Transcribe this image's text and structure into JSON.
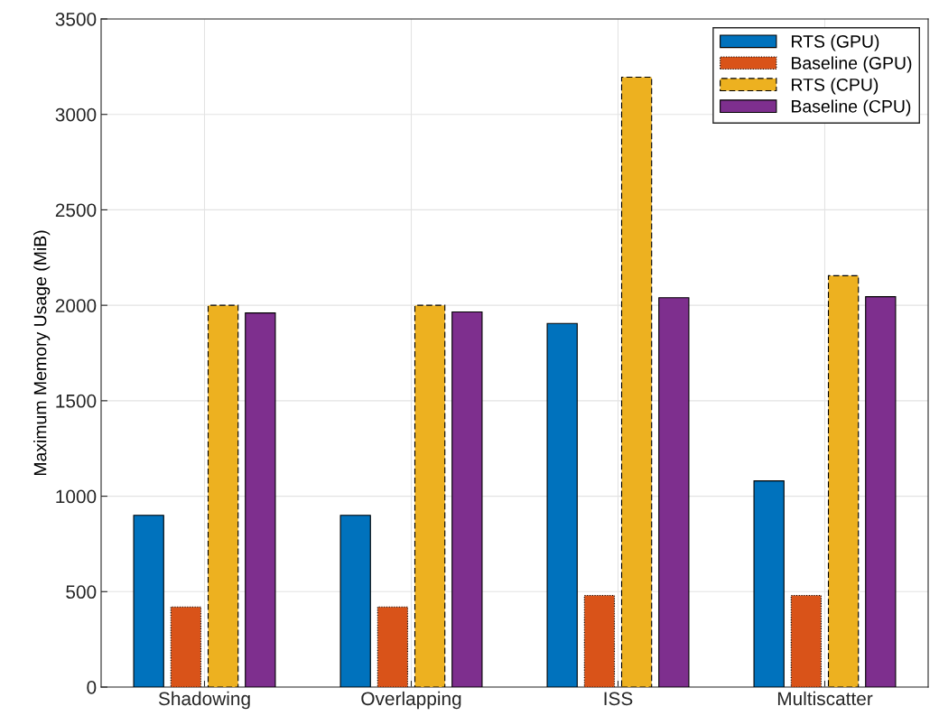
{
  "chart_data": {
    "type": "bar",
    "ylabel": "Maximum Memory Usage (MiB)",
    "categories": [
      "Shadowing",
      "Overlapping",
      "ISS",
      "Multiscatter"
    ],
    "series": [
      {
        "name": "RTS (GPU)",
        "color": "#0072bd",
        "line_style": "solid",
        "values": [
          900,
          900,
          1905,
          1080
        ]
      },
      {
        "name": "Baseline (GPU)",
        "color": "#d95319",
        "line_style": "dotted",
        "values": [
          420,
          420,
          480,
          480
        ]
      },
      {
        "name": "RTS (CPU)",
        "color": "#edb120",
        "line_style": "dashed",
        "values": [
          2000,
          2000,
          3195,
          2155
        ]
      },
      {
        "name": "Baseline (CPU)",
        "color": "#7e2f8e",
        "line_style": "solid",
        "values": [
          1960,
          1965,
          2040,
          2045
        ]
      }
    ],
    "ylim": [
      0,
      3500
    ],
    "yticks": [
      0,
      500,
      1000,
      1500,
      2000,
      2500,
      3000,
      3500
    ],
    "grid": true,
    "legend": "top right"
  }
}
